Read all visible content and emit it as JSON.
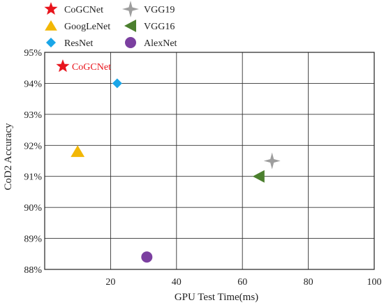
{
  "chart_data": {
    "type": "scatter",
    "title": "",
    "xlabel": "GPU Test Time(ms)",
    "ylabel": "CoD2 Accuracy",
    "xlim": [
      0,
      100
    ],
    "ylim": [
      88,
      95
    ],
    "x_ticks": [
      20,
      40,
      60,
      80,
      100
    ],
    "x_tick_labels": [
      "20",
      "40",
      "60",
      "80",
      "100"
    ],
    "y_ticks": [
      88,
      89,
      90,
      91,
      92,
      93,
      94,
      95
    ],
    "y_tick_labels": [
      "88%",
      "89%",
      "90%",
      "91%",
      "92%",
      "93%",
      "94%",
      "95%"
    ],
    "grid": true,
    "legend_position": "top-left, outside plot",
    "series": [
      {
        "name": "CoGCNet",
        "x": 5.5,
        "y": 94.55,
        "marker": "star",
        "color": "#e8141c",
        "label": "CoGCNet"
      },
      {
        "name": "GoogLeNet",
        "x": 10,
        "y": 91.8,
        "marker": "triangle-up",
        "color": "#f2b705"
      },
      {
        "name": "ResNet",
        "x": 22,
        "y": 94.0,
        "marker": "diamond",
        "color": "#1aa6e8"
      },
      {
        "name": "VGG19",
        "x": 69,
        "y": 91.5,
        "marker": "star4",
        "color": "#9e9e9e"
      },
      {
        "name": "VGG16",
        "x": 65,
        "y": 91.0,
        "marker": "triangle-left",
        "color": "#4b7f2e"
      },
      {
        "name": "AlexNet",
        "x": 31,
        "y": 88.4,
        "marker": "circle",
        "color": "#7b3fa0"
      }
    ]
  }
}
